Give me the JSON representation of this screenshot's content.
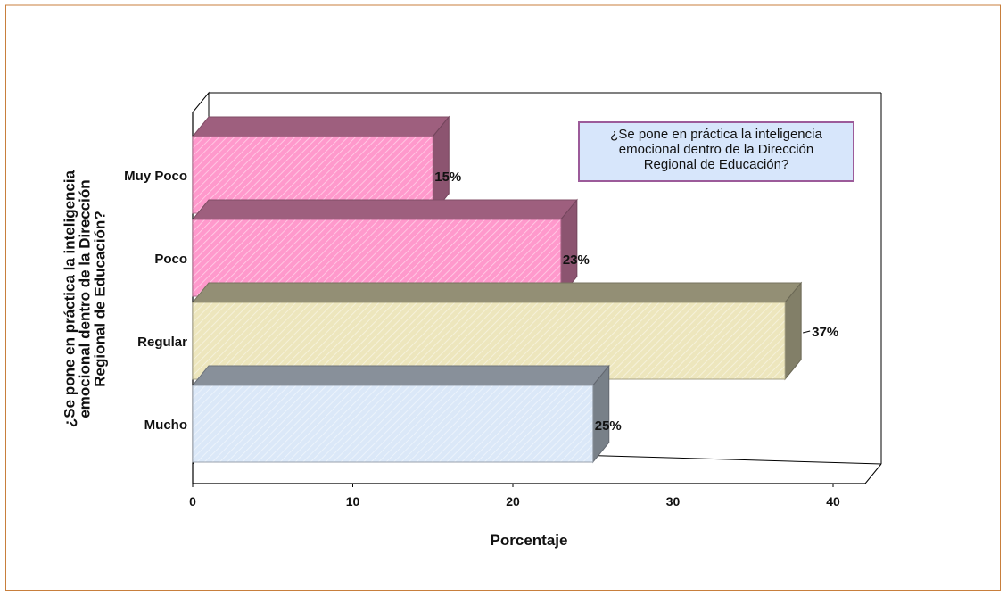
{
  "title": "",
  "chart_data": {
    "type": "bar",
    "orientation": "horizontal",
    "categories": [
      "Muy Poco",
      "Poco",
      "Regular",
      "Mucho"
    ],
    "values": [
      15,
      23,
      37,
      25
    ],
    "value_labels": [
      "15%",
      "23%",
      "37%",
      "25%"
    ],
    "xlabel": "Porcentaje",
    "ylabel": "¿Se pone en práctica la inteligencia emocional dentro de la Dirección Regional de Educación?",
    "ylabel_lines": [
      "¿Se pone en práctica la inteligencia",
      "emocional dentro de la Dirección",
      "Regional de Educación?"
    ],
    "xlim": [
      0,
      40
    ],
    "xticks": [
      0,
      10,
      20,
      30,
      40
    ],
    "legend_lines": [
      "¿Se pone en práctica la inteligencia",
      "emocional dentro de la Dirección",
      "Regional de Educación?"
    ],
    "legend_position": "top-right",
    "colors": {
      "Muy Poco": "#ff99cc",
      "Poco": "#ff99cc",
      "Regular": "#ede6bd",
      "Mucho": "#dbe8f8"
    },
    "grid": false
  },
  "colors": {
    "border": "#c87f3d",
    "axis": "#000000"
  }
}
